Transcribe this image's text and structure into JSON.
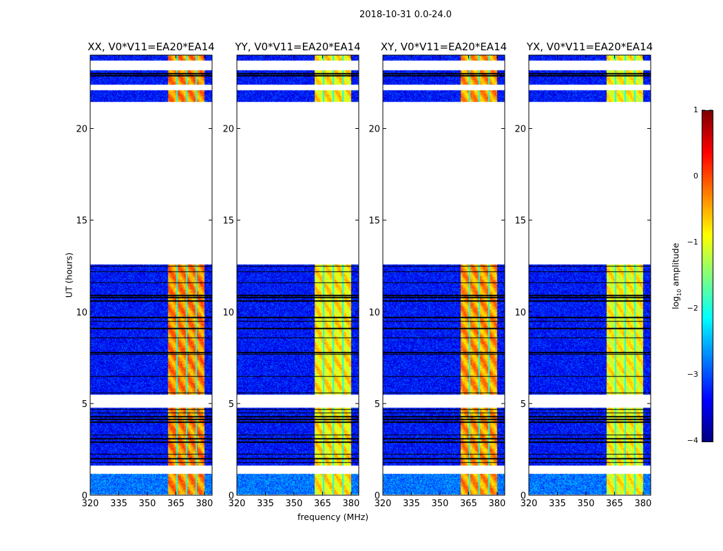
{
  "chart_data": {
    "type": "heatmap",
    "suptitle": "2018-10-31 0.0-24.0",
    "xlabel": "frequency (MHz)",
    "ylabel": "UT (hours)",
    "xlim": [
      320,
      384
    ],
    "ylim": [
      0,
      24
    ],
    "xticks": [
      "320",
      "335",
      "350",
      "365",
      "380"
    ],
    "xtick_values": [
      320,
      335,
      350,
      365,
      380
    ],
    "yticks": [
      "0",
      "5",
      "10",
      "15",
      "20"
    ],
    "ytick_values": [
      0,
      5,
      10,
      15,
      20
    ],
    "panels": [
      {
        "title": "XX, V0*V11=EA20*EA14",
        "band_level": -0.3
      },
      {
        "title": "YY, V0*V11=EA20*EA14",
        "band_level": -0.8
      },
      {
        "title": "XY, V0*V11=EA20*EA14",
        "band_level": -0.4
      },
      {
        "title": "YX, V0*V11=EA20*EA14",
        "band_level": -0.9
      }
    ],
    "data_time_blocks_hours": [
      [
        0.05,
        1.2
      ],
      [
        1.65,
        4.8
      ],
      [
        5.5,
        12.6
      ],
      [
        21.45,
        22.1
      ],
      [
        22.4,
        23.2
      ],
      [
        23.7,
        24.0
      ]
    ],
    "flagged_time_lines_hours": [
      1.8,
      2.0,
      2.25,
      2.9,
      3.1,
      3.3,
      4.0,
      4.15,
      4.3,
      4.5,
      4.7,
      5.6,
      6.5,
      7.7,
      7.8,
      8.6,
      9.1,
      9.5,
      9.7,
      10.6,
      10.8,
      10.9,
      11.6,
      12.2,
      12.5,
      22.9,
      23.0
    ],
    "active_band_mhz": [
      360.5,
      380
    ],
    "band_divider_mhz": [
      365.5,
      370.5,
      375.5
    ],
    "colorbar": {
      "label": "log10 amplitude",
      "label_main": "log",
      "label_sub": "10",
      "label_rest": " amplitude",
      "range": [
        -4,
        1
      ],
      "ticks": [
        "1",
        "0",
        "−1",
        "−2",
        "−3",
        "−4"
      ],
      "tick_values": [
        1,
        0,
        -1,
        -2,
        -3,
        -4
      ]
    }
  }
}
